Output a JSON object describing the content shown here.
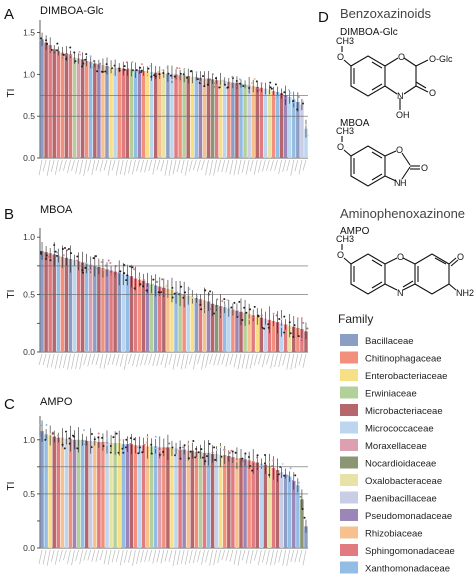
{
  "chart_data": [
    {
      "type": "bar",
      "panel": "A",
      "title": "DIMBOA-Glc",
      "ylabel": "TI",
      "ylim": [
        0,
        1.65
      ],
      "yticks": [
        0.0,
        0.5,
        1.0,
        1.5
      ],
      "yticklabels": [
        "0.0",
        "0.5",
        "1.0",
        "1.5"
      ],
      "hlines": [
        0.5,
        0.75
      ],
      "families": [
        "Bacillaceae",
        "Microbacteriaceae",
        "Sphingomonadaceae",
        "Microbacteriaceae",
        "Sphingomonadaceae",
        "Chitinophagaceae",
        "Microbacteriaceae",
        "Sphingomonadaceae",
        "Erwiniaceae",
        "Moraxellaceae",
        "Microbacteriaceae",
        "Chitinophagaceae",
        "Xanthomonadaceae",
        "Microbacteriaceae",
        "Pseudomonadaceae",
        "Rhizobiaceae",
        "Bacillaceae",
        "Enterobacteriaceae",
        "Micrococcaceae",
        "Chitinophagaceae",
        "Sphingomonadaceae",
        "Microbacteriaceae",
        "Erwiniaceae",
        "Xanthomonadaceae",
        "Pseudomonadaceae",
        "Chitinophagaceae",
        "Enterobacteriaceae",
        "Micrococcaceae",
        "Microbacteriaceae",
        "Rhizobiaceae",
        "Oxalobacteraceae",
        "Bacillaceae",
        "Micrococcaceae",
        "Sphingomonadaceae",
        "Chitinophagaceae",
        "Erwiniaceae",
        "Microbacteriaceae",
        "Enterobacteriaceae",
        "Xanthomonadaceae",
        "Pseudomonadaceae",
        "Rhizobiaceae",
        "Microbacteriaceae",
        "Nocardioidaceae",
        "Sphingomonadaceae",
        "Enterobacteriaceae",
        "Micrococcaceae",
        "Chitinophagaceae",
        "Bacillaceae",
        "Microbacteriaceae",
        "Xanthomonadaceae",
        "Erwiniaceae",
        "Paenibacillaceae",
        "Rhizobiaceae",
        "Microbacteriaceae",
        "Sphingomonadaceae",
        "Micrococcaceae",
        "Oxalobacteraceae",
        "Chitinophagaceae",
        "Xanthomonadaceae",
        "Microbacteriaceae",
        "Pseudomonadaceae",
        "Micrococcaceae",
        "Xanthomonadaceae",
        "Bacillaceae",
        "Paenibacillaceae",
        "Micrococcaceae"
      ],
      "values": [
        1.42,
        1.38,
        1.35,
        1.3,
        1.28,
        1.26,
        1.25,
        1.24,
        1.2,
        1.19,
        1.18,
        1.16,
        1.15,
        1.13,
        1.12,
        1.11,
        1.1,
        1.09,
        1.08,
        1.08,
        1.07,
        1.06,
        1.06,
        1.05,
        1.05,
        1.04,
        1.04,
        1.03,
        1.02,
        1.02,
        1.01,
        1.01,
        1.0,
        1.0,
        0.99,
        0.99,
        0.98,
        0.97,
        0.97,
        0.96,
        0.95,
        0.95,
        0.94,
        0.93,
        0.93,
        0.92,
        0.91,
        0.9,
        0.9,
        0.89,
        0.88,
        0.87,
        0.86,
        0.85,
        0.84,
        0.83,
        0.82,
        0.8,
        0.79,
        0.77,
        0.75,
        0.73,
        0.7,
        0.67,
        0.64,
        0.35
      ],
      "points_text": ""
    },
    {
      "type": "bar",
      "panel": "B",
      "title": "MBOA",
      "ylabel": "TI",
      "ylim": [
        0,
        1.08
      ],
      "yticks": [
        0.0,
        0.25,
        0.5,
        0.75,
        1.0
      ],
      "yticklabels": [
        "0.0",
        "",
        "0.5",
        "",
        "1.0"
      ],
      "hlines": [
        0.5,
        0.75
      ],
      "families": [
        "Bacillaceae",
        "Microbacteriaceae",
        "Sphingomonadaceae",
        "Microbacteriaceae",
        "Xanthomonadaceae",
        "Chitinophagaceae",
        "Microbacteriaceae",
        "Bacillaceae",
        "Micrococcaceae",
        "Sphingomonadaceae",
        "Microbacteriaceae",
        "Xanthomonadaceae",
        "Moraxellaceae",
        "Bacillaceae",
        "Microbacteriaceae",
        "Chitinophagaceae",
        "Pseudomonadaceae",
        "Sphingomonadaceae",
        "Microbacteriaceae",
        "Bacillaceae",
        "Micrococcaceae",
        "Xanthomonadaceae",
        "Microbacteriaceae",
        "Sphingomonadaceae",
        "Chitinophagaceae",
        "Microbacteriaceae",
        "Pseudomonadaceae",
        "Erwiniaceae",
        "Bacillaceae",
        "Sphingomonadaceae",
        "Microbacteriaceae",
        "Rhizobiaceae",
        "Enterobacteriaceae",
        "Xanthomonadaceae",
        "Erwiniaceae",
        "Chitinophagaceae",
        "Micrococcaceae",
        "Enterobacteriaceae",
        "Bacillaceae",
        "Sphingomonadaceae",
        "Rhizobiaceae",
        "Pseudomonadaceae",
        "Microbacteriaceae",
        "Nocardioidaceae",
        "Sphingomonadaceae",
        "Xanthomonadaceae",
        "Micrococcaceae",
        "Chitinophagaceae",
        "Pseudomonadaceae",
        "Microbacteriaceae",
        "Erwiniaceae",
        "Rhizobiaceae",
        "Sphingomonadaceae",
        "Enterobacteriaceae",
        "Microbacteriaceae",
        "Paenibacillaceae",
        "Sphingomonadaceae",
        "Chitinophagaceae",
        "Microbacteriaceae",
        "Micrococcaceae",
        "Sphingomonadaceae",
        "Oxalobacteraceae",
        "Microbacteriaceae",
        "Chitinophagaceae",
        "Sphingomonadaceae",
        "Microbacteriaceae"
      ],
      "values": [
        0.88,
        0.87,
        0.86,
        0.85,
        0.84,
        0.83,
        0.82,
        0.81,
        0.8,
        0.79,
        0.78,
        0.77,
        0.76,
        0.75,
        0.74,
        0.73,
        0.72,
        0.71,
        0.7,
        0.69,
        0.68,
        0.67,
        0.66,
        0.64,
        0.63,
        0.62,
        0.6,
        0.59,
        0.58,
        0.57,
        0.56,
        0.55,
        0.54,
        0.52,
        0.51,
        0.5,
        0.49,
        0.48,
        0.47,
        0.46,
        0.45,
        0.44,
        0.42,
        0.41,
        0.4,
        0.39,
        0.38,
        0.37,
        0.36,
        0.35,
        0.34,
        0.33,
        0.32,
        0.31,
        0.3,
        0.29,
        0.28,
        0.27,
        0.26,
        0.25,
        0.24,
        0.23,
        0.22,
        0.21,
        0.2,
        0.18
      ],
      "points_text": ""
    },
    {
      "type": "bar",
      "panel": "C",
      "title": "AMPO",
      "ylabel": "TI",
      "ylim": [
        0,
        1.22
      ],
      "yticks": [
        0.0,
        0.25,
        0.5,
        0.75,
        1.0
      ],
      "yticklabels": [
        "0.0",
        "",
        "0.5",
        "",
        "1.0"
      ],
      "hlines": [
        0.5,
        0.75
      ],
      "families": [
        "Bacillaceae",
        "Xanthomonadaceae",
        "Enterobacteriaceae",
        "Microbacteriaceae",
        "Sphingomonadaceae",
        "Rhizobiaceae",
        "Micrococcaceae",
        "Chitinophagaceae",
        "Pseudomonadaceae",
        "Erwiniaceae",
        "Xanthomonadaceae",
        "Microbacteriaceae",
        "Paenibacillaceae",
        "Rhizobiaceae",
        "Sphingomonadaceae",
        "Chitinophagaceae",
        "Micrococcaceae",
        "Oxalobacteraceae",
        "Erwiniaceae",
        "Enterobacteriaceae",
        "Xanthomonadaceae",
        "Pseudomonadaceae",
        "Microbacteriaceae",
        "Chitinophagaceae",
        "Micrococcaceae",
        "Sphingomonadaceae",
        "Rhizobiaceae",
        "Erwiniaceae",
        "Xanthomonadaceae",
        "Moraxellaceae",
        "Chitinophagaceae",
        "Microbacteriaceae",
        "Enterobacteriaceae",
        "Micrococcaceae",
        "Sphingomonadaceae",
        "Pseudomonadaceae",
        "Rhizobiaceae",
        "Microbacteriaceae",
        "Chitinophagaceae",
        "Erwiniaceae",
        "Sphingomonadaceae",
        "Xanthomonadaceae",
        "Microbacteriaceae",
        "Micrococcaceae",
        "Enterobacteriaceae",
        "Chitinophagaceae",
        "Microbacteriaceae",
        "Sphingomonadaceae",
        "Rhizobiaceae",
        "Microbacteriaceae",
        "Pseudomonadaceae",
        "Chitinophagaceae",
        "Sphingomonadaceae",
        "Microbacteriaceae",
        "Micrococcaceae",
        "Microbacteriaceae",
        "Oxalobacteraceae",
        "Sphingomonadaceae",
        "Microbacteriaceae",
        "Paenibacillaceae",
        "Bacillaceae",
        "Xanthomonadaceae",
        "Pseudomonadaceae",
        "Xanthomonadaceae",
        "Nocardioidaceae",
        "Bacillaceae"
      ],
      "values": [
        1.08,
        1.05,
        1.04,
        1.03,
        1.02,
        1.02,
        1.01,
        1.01,
        1.0,
        1.0,
        1.0,
        0.99,
        0.99,
        0.99,
        0.98,
        0.98,
        0.98,
        0.97,
        0.97,
        0.97,
        0.96,
        0.96,
        0.96,
        0.95,
        0.95,
        0.95,
        0.94,
        0.94,
        0.94,
        0.93,
        0.93,
        0.93,
        0.92,
        0.92,
        0.91,
        0.91,
        0.9,
        0.9,
        0.89,
        0.89,
        0.88,
        0.88,
        0.87,
        0.87,
        0.86,
        0.86,
        0.85,
        0.84,
        0.83,
        0.83,
        0.82,
        0.81,
        0.8,
        0.79,
        0.78,
        0.77,
        0.76,
        0.74,
        0.72,
        0.7,
        0.68,
        0.66,
        0.62,
        0.58,
        0.45,
        0.2
      ],
      "points_text": ""
    }
  ],
  "family_colors": {
    "Bacillaceae": "#8c9ec3",
    "Chitinophagaceae": "#f2907d",
    "Enterobacteriaceae": "#f7df86",
    "Erwiniaceae": "#b3cf9a",
    "Microbacteriaceae": "#b5676d",
    "Micrococcaceae": "#bcd6ef",
    "Moraxellaceae": "#dca0b0",
    "Nocardioidaceae": "#8c9675",
    "Oxalobacteraceae": "#e7e2a6",
    "Paenibacillaceae": "#c9cde5",
    "Pseudomonadaceae": "#9c86b8",
    "Rhizobiaceae": "#f7c08f",
    "Sphingomonadaceae": "#e07b80",
    "Xanthomonadaceae": "#94bde6"
  },
  "legend": {
    "title": "Family",
    "items": [
      "Bacillaceae",
      "Chitinophagaceae",
      "Enterobacteriaceae",
      "Erwiniaceae",
      "Microbacteriaceae",
      "Micrococcaceae",
      "Moraxellaceae",
      "Nocardioidaceae",
      "Oxalobacteraceae",
      "Paenibacillaceae",
      "Pseudomonadaceae",
      "Rhizobiaceae",
      "Sphingomonadaceae",
      "Xanthomonadaceae"
    ]
  },
  "structures": {
    "panel_letter": "D",
    "heading1": "Benzoxazinoids",
    "heading2": "Aminophenoxazinone",
    "compounds": [
      {
        "name": "DIMBOA-Glc",
        "atoms": [
          "CH3",
          "O",
          "O",
          "O",
          "O-Glc",
          "N",
          "OH",
          "O"
        ]
      },
      {
        "name": "MBOA",
        "atoms": [
          "CH3",
          "O",
          "O",
          "N",
          "H",
          "O"
        ]
      },
      {
        "name": "AMPO",
        "atoms": [
          "CH3",
          "O",
          "O",
          "O",
          "N",
          "NH2"
        ]
      }
    ]
  }
}
